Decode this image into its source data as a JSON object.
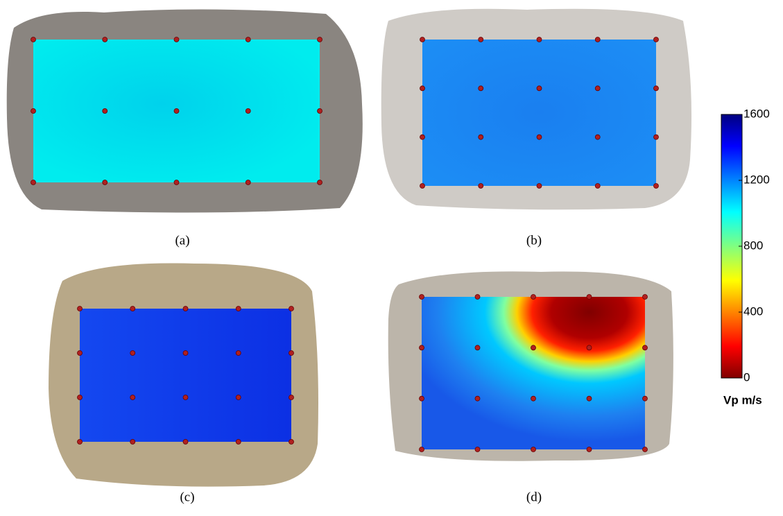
{
  "panels": [
    {
      "label": "(a)"
    },
    {
      "label": "(b)"
    },
    {
      "label": "(c)"
    },
    {
      "label": "(d)"
    }
  ],
  "colorbar": {
    "label": "Vp m/s",
    "lim": [
      0,
      1600
    ],
    "ticks": [
      0,
      400,
      800,
      1200,
      1600
    ]
  }
}
